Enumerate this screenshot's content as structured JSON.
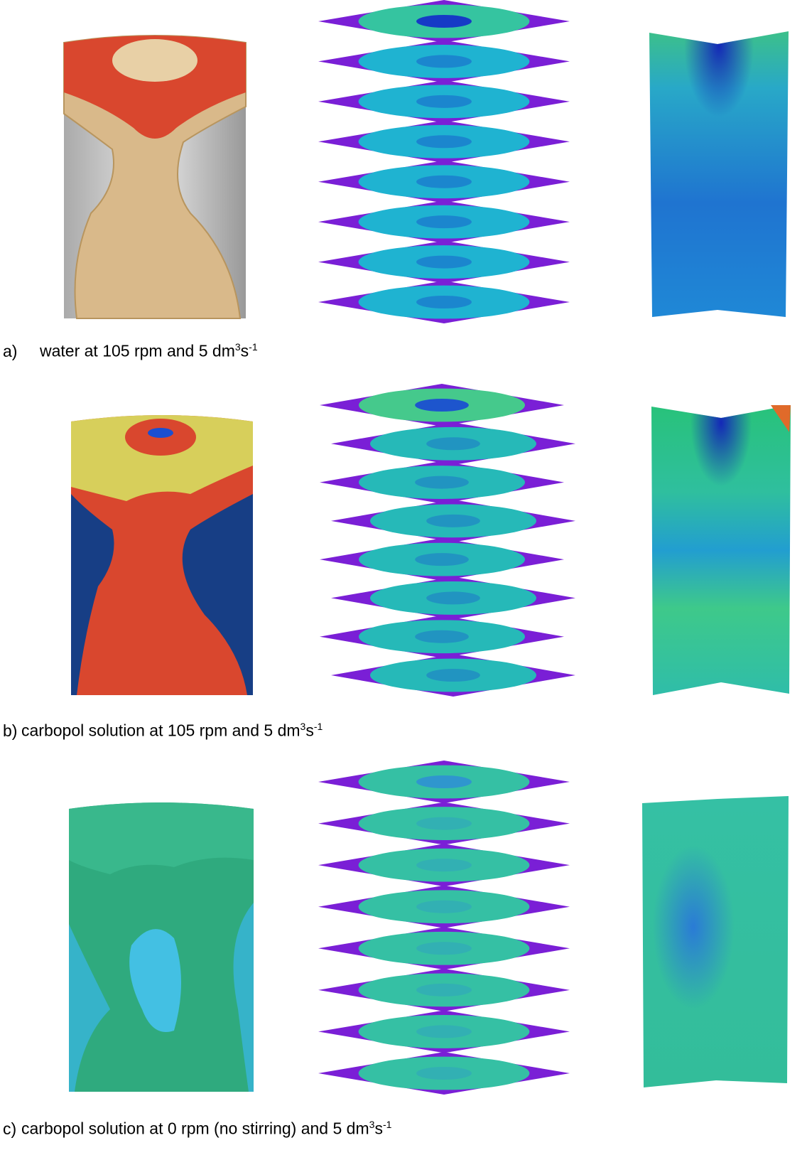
{
  "panels": [
    {
      "id": "a",
      "caption_prefix": "a)",
      "caption_text": "water at 105 rpm and 5 dm",
      "caption_sup1": "3",
      "caption_mid": "s",
      "caption_sup2": "-1",
      "colors": {
        "shell": "#c9c9c9",
        "iso_outer": "#d9b98a",
        "iso_inner": "#d9472e",
        "plane_edge": "#7a1fd6",
        "plane_fill": "#1fb3d1",
        "plane_top_fill": "#35c4a0",
        "core": "#1533c8"
      }
    },
    {
      "id": "b",
      "caption_prefix": "b)",
      "caption_text": "carbopol solution at 105 rpm and 5 dm",
      "caption_sup1": "3",
      "caption_mid": "s",
      "caption_sup2": "-1",
      "colors": {
        "shell": "#173e85",
        "iso_outer": "#d7cf5b",
        "iso_inner": "#d9472e",
        "plane_edge": "#7a1fd6",
        "plane_fill": "#26b9b8",
        "plane_top_fill": "#45c98c",
        "core": "#1b4fd1"
      }
    },
    {
      "id": "c",
      "caption_prefix": "c)",
      "caption_text": "carbopol solution at 0 rpm (no stirring) and 5 dm",
      "caption_sup1": "3",
      "caption_mid": "s",
      "caption_sup2": "-1",
      "colors": {
        "shell": "#36b3c9",
        "iso_outer": "#2faa7e",
        "iso_inner": "#43c0e3",
        "plane_edge": "#7a1fd6",
        "plane_fill": "#35c0a4",
        "plane_top_fill": "#35c0a4",
        "core": "#2f93d1"
      }
    }
  ]
}
